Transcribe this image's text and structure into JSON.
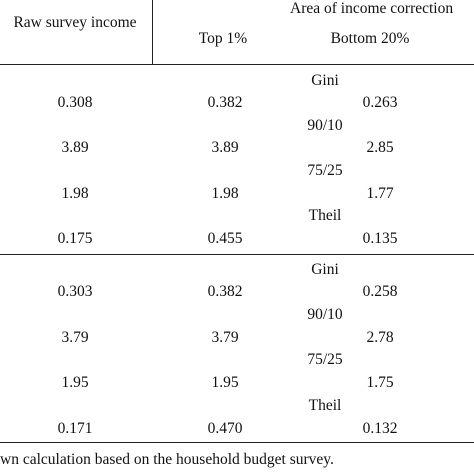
{
  "header": {
    "col1": "Raw survey income",
    "group": "Area of income correction",
    "col2": "Top 1%",
    "col3": "Bottom 20%"
  },
  "sections": [
    {
      "blocks": [
        {
          "measure": "Gini",
          "raw": "0.308",
          "top": "0.382",
          "bottom": "0.263"
        },
        {
          "measure": "90/10",
          "raw": "3.89",
          "top": "3.89",
          "bottom": "2.85"
        },
        {
          "measure": "75/25",
          "raw": "1.98",
          "top": "1.98",
          "bottom": "1.77"
        },
        {
          "measure": "Theil",
          "raw": "0.175",
          "top": "0.455",
          "bottom": "0.135"
        }
      ]
    },
    {
      "blocks": [
        {
          "measure": "Gini",
          "raw": "0.303",
          "top": "0.382",
          "bottom": "0.258"
        },
        {
          "measure": "90/10",
          "raw": "3.79",
          "top": "3.79",
          "bottom": "2.78"
        },
        {
          "measure": "75/25",
          "raw": "1.95",
          "top": "1.95",
          "bottom": "1.75"
        },
        {
          "measure": "Theil",
          "raw": "0.171",
          "top": "0.470",
          "bottom": "0.132"
        }
      ]
    }
  ],
  "footnote": "wn calculation based on the household budget survey."
}
